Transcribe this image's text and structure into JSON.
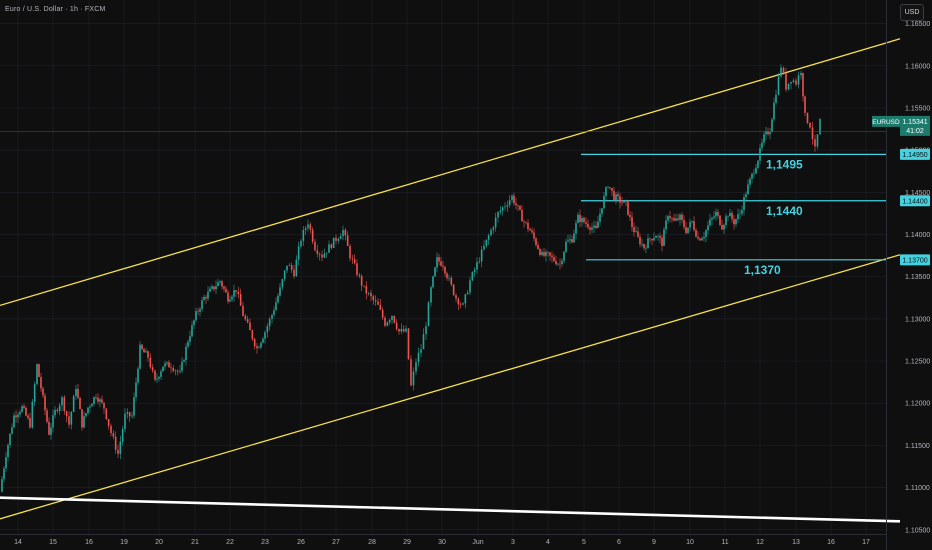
{
  "header": {
    "title": "Euro / U.S. Dollar · 1h · FXCM"
  },
  "currency_button": {
    "label": "USD"
  },
  "colors": {
    "up": "#26a69a",
    "down": "#ef5350",
    "channel": "#f5e04a",
    "levels": "#44d2e0",
    "trend": "#ffffff",
    "bg": "#0f0f0f"
  },
  "chart_data": {
    "type": "candlestick",
    "symbol": "EURUSD",
    "interval": "1h",
    "ylim": [
      1.1045,
      1.1678
    ],
    "yticks": [
      1.105,
      1.11,
      1.115,
      1.12,
      1.125,
      1.13,
      1.135,
      1.14,
      1.145,
      1.15,
      1.155,
      1.16,
      1.165
    ],
    "ytick_labels": [
      "1.10500",
      "1.11000",
      "1.11500",
      "1.12000",
      "1.12500",
      "1.13000",
      "1.13500",
      "1.14000",
      "1.14500",
      "1.15000",
      "1.15500",
      "1.16000",
      "1.16500"
    ],
    "xlim": [
      0,
      886
    ],
    "xticks": [
      {
        "x": 18,
        "label": "14"
      },
      {
        "x": 53,
        "label": "15"
      },
      {
        "x": 89,
        "label": "16"
      },
      {
        "x": 124,
        "label": "19"
      },
      {
        "x": 159,
        "label": "20"
      },
      {
        "x": 195,
        "label": "21"
      },
      {
        "x": 230,
        "label": "22"
      },
      {
        "x": 265,
        "label": "23"
      },
      {
        "x": 301,
        "label": "26"
      },
      {
        "x": 336,
        "label": "27"
      },
      {
        "x": 372,
        "label": "28"
      },
      {
        "x": 407,
        "label": "29"
      },
      {
        "x": 442,
        "label": "30"
      },
      {
        "x": 478,
        "label": "Jun"
      },
      {
        "x": 513,
        "label": "3"
      },
      {
        "x": 548,
        "label": "4"
      },
      {
        "x": 584,
        "label": "5"
      },
      {
        "x": 619,
        "label": "6"
      },
      {
        "x": 654,
        "label": "9"
      },
      {
        "x": 690,
        "label": "10"
      },
      {
        "x": 725,
        "label": "11"
      },
      {
        "x": 760,
        "label": "12"
      },
      {
        "x": 796,
        "label": "13"
      },
      {
        "x": 831,
        "label": "16"
      },
      {
        "x": 866,
        "label": "17"
      }
    ],
    "price_path": [
      [
        0,
        1.1095
      ],
      [
        6,
        1.114
      ],
      [
        14,
        1.1185
      ],
      [
        22,
        1.1195
      ],
      [
        30,
        1.1175
      ],
      [
        37,
        1.1245
      ],
      [
        43,
        1.1205
      ],
      [
        49,
        1.1165
      ],
      [
        55,
        1.119
      ],
      [
        62,
        1.1205
      ],
      [
        69,
        1.1175
      ],
      [
        76,
        1.122
      ],
      [
        82,
        1.1175
      ],
      [
        88,
        1.1195
      ],
      [
        96,
        1.121
      ],
      [
        104,
        1.1195
      ],
      [
        111,
        1.1165
      ],
      [
        118,
        1.114
      ],
      [
        125,
        1.1185
      ],
      [
        132,
        1.1185
      ],
      [
        140,
        1.1265
      ],
      [
        148,
        1.1255
      ],
      [
        155,
        1.1225
      ],
      [
        163,
        1.1245
      ],
      [
        171,
        1.1245
      ],
      [
        180,
        1.1235
      ],
      [
        188,
        1.1275
      ],
      [
        196,
        1.1305
      ],
      [
        204,
        1.1325
      ],
      [
        212,
        1.1335
      ],
      [
        220,
        1.1345
      ],
      [
        228,
        1.1325
      ],
      [
        236,
        1.1335
      ],
      [
        243,
        1.1305
      ],
      [
        250,
        1.1285
      ],
      [
        257,
        1.1265
      ],
      [
        265,
        1.1285
      ],
      [
        272,
        1.1305
      ],
      [
        280,
        1.1335
      ],
      [
        287,
        1.1365
      ],
      [
        294,
        1.1355
      ],
      [
        301,
        1.1395
      ],
      [
        308,
        1.1415
      ],
      [
        315,
        1.1385
      ],
      [
        322,
        1.1375
      ],
      [
        329,
        1.1385
      ],
      [
        336,
        1.1395
      ],
      [
        343,
        1.1405
      ],
      [
        350,
        1.1375
      ],
      [
        357,
        1.1355
      ],
      [
        364,
        1.1335
      ],
      [
        371,
        1.1325
      ],
      [
        378,
        1.1315
      ],
      [
        385,
        1.1295
      ],
      [
        392,
        1.1305
      ],
      [
        399,
        1.1285
      ],
      [
        406,
        1.1285
      ],
      [
        411,
        1.122
      ],
      [
        416,
        1.125
      ],
      [
        421,
        1.1265
      ],
      [
        426,
        1.1295
      ],
      [
        431,
        1.1335
      ],
      [
        437,
        1.137
      ],
      [
        443,
        1.1365
      ],
      [
        449,
        1.1345
      ],
      [
        456,
        1.1325
      ],
      [
        463,
        1.1315
      ],
      [
        470,
        1.1345
      ],
      [
        477,
        1.1365
      ],
      [
        484,
        1.1385
      ],
      [
        491,
        1.1405
      ],
      [
        498,
        1.1425
      ],
      [
        505,
        1.1435
      ],
      [
        512,
        1.1445
      ],
      [
        518,
        1.143
      ],
      [
        524,
        1.1415
      ],
      [
        530,
        1.1405
      ],
      [
        536,
        1.139
      ],
      [
        542,
        1.1375
      ],
      [
        548,
        1.1375
      ],
      [
        554,
        1.137
      ],
      [
        560,
        1.1365
      ],
      [
        566,
        1.139
      ],
      [
        572,
        1.1395
      ],
      [
        578,
        1.142
      ],
      [
        584,
        1.1415
      ],
      [
        590,
        1.141
      ],
      [
        596,
        1.1405
      ],
      [
        602,
        1.1435
      ],
      [
        608,
        1.146
      ],
      [
        614,
        1.1445
      ],
      [
        620,
        1.144
      ],
      [
        626,
        1.1435
      ],
      [
        632,
        1.141
      ],
      [
        638,
        1.1395
      ],
      [
        644,
        1.1385
      ],
      [
        650,
        1.1395
      ],
      [
        656,
        1.14
      ],
      [
        662,
        1.139
      ],
      [
        668,
        1.1425
      ],
      [
        674,
        1.1415
      ],
      [
        680,
        1.142
      ],
      [
        686,
        1.1405
      ],
      [
        692,
        1.1415
      ],
      [
        698,
        1.1395
      ],
      [
        704,
        1.14
      ],
      [
        710,
        1.1415
      ],
      [
        716,
        1.1425
      ],
      [
        722,
        1.141
      ],
      [
        728,
        1.1425
      ],
      [
        734,
        1.1415
      ],
      [
        740,
        1.1425
      ],
      [
        746,
        1.145
      ],
      [
        752,
        1.147
      ],
      [
        758,
        1.149
      ],
      [
        764,
        1.1515
      ],
      [
        770,
        1.1525
      ],
      [
        776,
        1.157
      ],
      [
        781,
        1.16
      ],
      [
        786,
        1.1575
      ],
      [
        791,
        1.1585
      ],
      [
        796,
        1.158
      ],
      [
        801,
        1.1595
      ],
      [
        805,
        1.154
      ],
      [
        810,
        1.153
      ],
      [
        815,
        1.15
      ],
      [
        820,
        1.1534
      ]
    ],
    "channel_lines": [
      {
        "name": "channel-upper",
        "from": [
          0,
          1.1316
        ],
        "to": [
          900,
          1.1632
        ]
      },
      {
        "name": "channel-lower",
        "from": [
          0,
          1.1063
        ],
        "to": [
          900,
          1.1376
        ]
      }
    ],
    "trend_line": {
      "name": "long-term-trendline",
      "from": [
        0,
        1.1088
      ],
      "to": [
        900,
        1.106
      ]
    },
    "levels": [
      {
        "value": 1.1495,
        "label": "1,1495",
        "axis_label": "1.14950",
        "x_start": 581
      },
      {
        "value": 1.144,
        "label": "1,1440",
        "axis_label": "1.14400",
        "x_start": 581
      },
      {
        "value": 1.137,
        "label": "1,1370",
        "axis_label": "1.13700",
        "x_start": 586
      }
    ],
    "current_price": {
      "symbol_tag": "EURUSD",
      "value": 1.15341,
      "label": "1.15341",
      "countdown": "41:02"
    }
  }
}
